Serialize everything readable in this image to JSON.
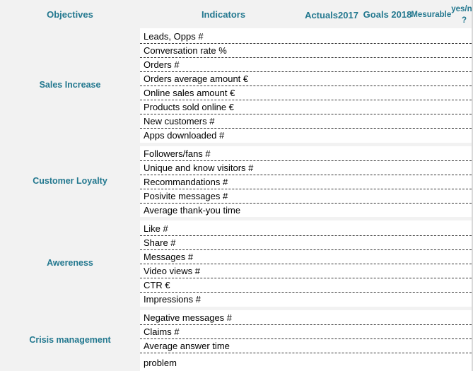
{
  "headers": {
    "objectives": "Objectives",
    "indicators": "Indicators",
    "actuals_line1": "Actuals",
    "actuals_line2": "2017",
    "goals": "Goals 2018",
    "mesurable_line1": "Mesurable",
    "mesurable_line2": "yes/no ?"
  },
  "groups": [
    {
      "objective": "Sales Increase",
      "indicators": [
        "Leads, Opps #",
        "Conversation rate %",
        "Orders #",
        "Orders average amount €",
        "Online sales amount €",
        "Products sold online €",
        "New customers #",
        "Apps downloaded #"
      ]
    },
    {
      "objective": "Customer Loyalty",
      "indicators": [
        "Followers/fans #",
        "Unique and know visitors #",
        "Recommandations #",
        "Posivite messages #",
        "Average thank-you time"
      ]
    },
    {
      "objective": "Awereness",
      "indicators": [
        "Like #",
        "Share #",
        "Messages #",
        "Video views #",
        "CTR €",
        "Impressions #"
      ]
    },
    {
      "objective": "Crisis management",
      "indicators": [
        "Negative messages #",
        "Claims #",
        "Average answer time",
        "problem"
      ]
    }
  ]
}
